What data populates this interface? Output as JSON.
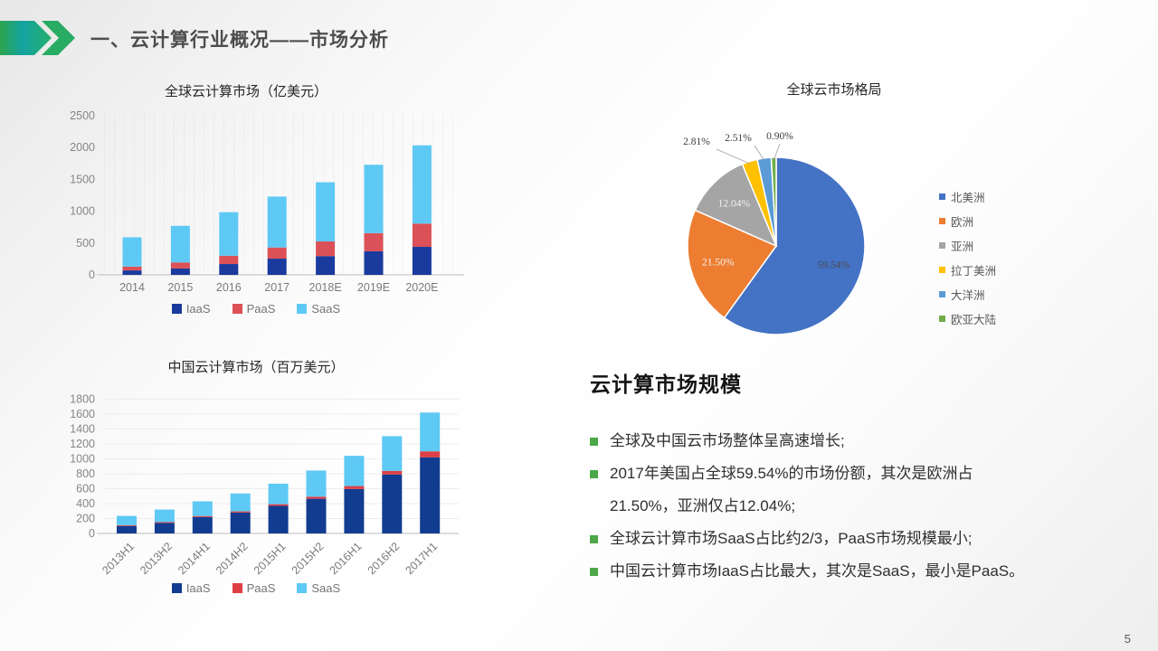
{
  "slide": {
    "title": "一、云计算行业概况——市场分析",
    "page_number": "5"
  },
  "chart_data": [
    {
      "id": "global-cloud-market",
      "type": "bar",
      "stacked": true,
      "title": "全球云计算市场（亿美元）",
      "categories": [
        "2014",
        "2015",
        "2016",
        "2017",
        "2018E",
        "2019E",
        "2020E"
      ],
      "series": [
        {
          "name": "IaaS",
          "color": "#1A3A9E",
          "values": [
            70,
            100,
            170,
            255,
            295,
            370,
            440
          ]
        },
        {
          "name": "PaaS",
          "color": "#DC5057",
          "values": [
            60,
            95,
            130,
            175,
            230,
            285,
            365
          ]
        },
        {
          "name": "SaaS",
          "color": "#5EC9F4",
          "values": [
            460,
            575,
            685,
            800,
            930,
            1075,
            1230
          ]
        }
      ],
      "ylim": [
        0,
        2500
      ],
      "ytick_step": 500,
      "legend_position": "bottom",
      "grid": "faint-vertical"
    },
    {
      "id": "china-cloud-market",
      "type": "bar",
      "stacked": true,
      "title": "中国云计算市场（百万美元）",
      "categories": [
        "2013H1",
        "2013H2",
        "2014H1",
        "2014H2",
        "2015H1",
        "2015H2",
        "2016H1",
        "2016H2",
        "2017H1"
      ],
      "series": [
        {
          "name": "IaaS",
          "color": "#123C8F",
          "values": [
            100,
            140,
            220,
            280,
            370,
            465,
            595,
            790,
            1020
          ]
        },
        {
          "name": "PaaS",
          "color": "#DE3F46",
          "values": [
            10,
            12,
            14,
            16,
            22,
            28,
            40,
            48,
            80
          ]
        },
        {
          "name": "SaaS",
          "color": "#5EC9F4",
          "values": [
            125,
            168,
            196,
            240,
            275,
            350,
            405,
            465,
            520
          ]
        }
      ],
      "ylim": [
        0,
        1800
      ],
      "ytick_step": 200,
      "legend_position": "bottom",
      "grid": "horizontal",
      "xlabel_rotation": -45
    },
    {
      "id": "global-cloud-share",
      "type": "pie",
      "title": "全球云市场格局",
      "start_angle": "top",
      "direction": "clockwise",
      "legend_position": "right",
      "slices": [
        {
          "label": "北美洲",
          "value": 59.54,
          "pct_label": "59.54%",
          "color": "#4472C4",
          "label_style": "inside-dark"
        },
        {
          "label": "欧洲",
          "value": 21.5,
          "pct_label": "21.50%",
          "color": "#ED7D31",
          "label_style": "inside-light"
        },
        {
          "label": "亚洲",
          "value": 12.04,
          "pct_label": "12.04%",
          "color": "#A5A5A5",
          "label_style": "inside-light"
        },
        {
          "label": "拉丁美洲",
          "value": 2.81,
          "pct_label": "2.81%",
          "color": "#FFC000",
          "label_style": "outside"
        },
        {
          "label": "大洋洲",
          "value": 2.51,
          "pct_label": "2.51%",
          "color": "#5B9BD5",
          "label_style": "outside"
        },
        {
          "label": "欧亚大陆",
          "value": 0.9,
          "pct_label": "0.90%",
          "color": "#70AD47",
          "label_style": "outside"
        }
      ]
    }
  ],
  "panel": {
    "heading": "云计算市场规模",
    "bullet_color": "#4CA749",
    "bullets": [
      "全球及中国云市场整体呈高速增长;",
      "2017年美国占全球59.54%的市场份额，其次是欧洲占\n21.50%，亚洲仅占12.04%;",
      "全球云计算市场SaaS占比约2/3，PaaS市场规模最小;",
      "中国云计算市场IaaS占比最大，其次是SaaS，最小是PaaS。"
    ]
  },
  "decor": {
    "arrow_gradient": [
      "#2DA44E",
      "#13A3A1",
      "#25B06A"
    ],
    "chevron_color": "#28AB63"
  }
}
